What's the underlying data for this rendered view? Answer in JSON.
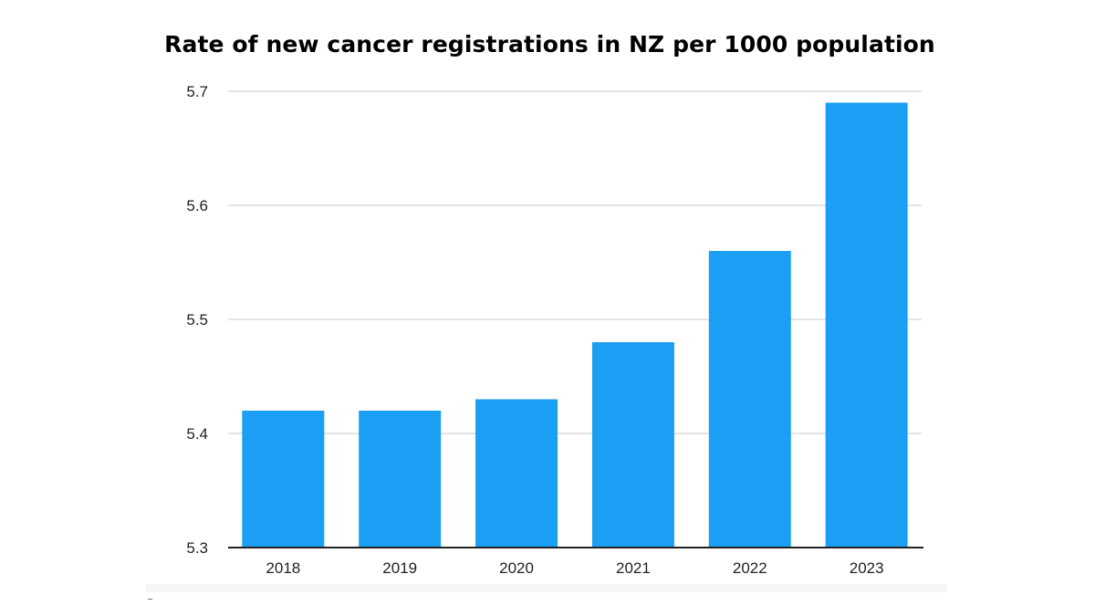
{
  "chart_data": {
    "type": "bar",
    "title": "Rate of new cancer registrations in NZ per 1000 population",
    "xlabel": "",
    "ylabel": "",
    "categories": [
      "2018",
      "2019",
      "2020",
      "2021",
      "2022",
      "2023"
    ],
    "values": [
      5.42,
      5.42,
      5.43,
      5.48,
      5.56,
      5.69
    ],
    "ylim": [
      5.3,
      5.7
    ],
    "yticks": [
      "5.3",
      "5.4",
      "5.5",
      "5.6",
      "5.7"
    ],
    "grid": true,
    "legend": "none",
    "bar_color": "#1a9ff5",
    "grid_color": "#dcdcdc",
    "axis_color": "#222222"
  }
}
